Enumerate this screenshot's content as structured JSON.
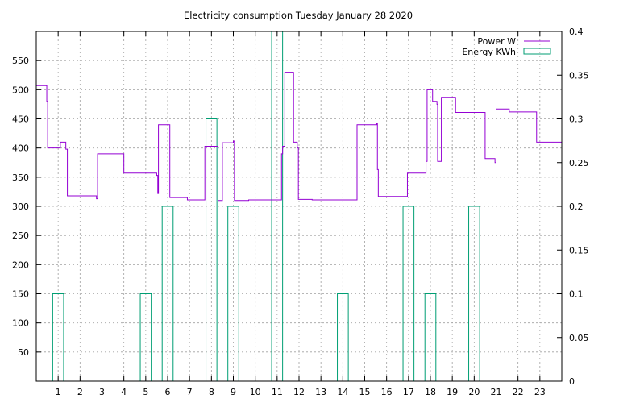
{
  "chart_data": {
    "type": "line",
    "title": "Electricity consumption Tuesday January 28 2020",
    "x_axis": {
      "range": [
        0,
        24
      ],
      "ticks": [
        1,
        2,
        3,
        4,
        5,
        6,
        7,
        8,
        9,
        10,
        11,
        12,
        13,
        14,
        15,
        16,
        17,
        18,
        19,
        20,
        21,
        22,
        23
      ],
      "tick_labels": [
        "1",
        "2",
        "3",
        "4",
        "5",
        "6",
        "7",
        "8",
        "9",
        "10",
        "11",
        "12",
        "13",
        "14",
        "15",
        "16",
        "17",
        "18",
        "19",
        "20",
        "21",
        "22",
        "23"
      ]
    },
    "y_left": {
      "range": [
        0,
        600
      ],
      "ticks": [
        50,
        100,
        150,
        200,
        250,
        300,
        350,
        400,
        450,
        500,
        550
      ],
      "tick_labels": [
        "50",
        "100",
        "150",
        "200",
        "250",
        "300",
        "350",
        "400",
        "450",
        "500",
        "550"
      ]
    },
    "y_right": {
      "range": [
        0,
        0.4
      ],
      "ticks": [
        0,
        0.05,
        0.1,
        0.15,
        0.2,
        0.25,
        0.3,
        0.35,
        0.4
      ],
      "tick_labels": [
        "0",
        "0.05",
        "0.1",
        "0.15",
        "0.2",
        "0.25",
        "0.3",
        "0.35",
        "0.4"
      ]
    },
    "grid": true,
    "legend_position": "top-right",
    "series": [
      {
        "name": "Power W",
        "type": "step-line",
        "axis": "left",
        "color": "#9400d3",
        "points": [
          [
            0,
            507
          ],
          [
            0.48,
            507
          ],
          [
            0.48,
            480
          ],
          [
            0.52,
            480
          ],
          [
            0.52,
            400
          ],
          [
            1.1,
            400
          ],
          [
            1.1,
            410
          ],
          [
            1.35,
            410
          ],
          [
            1.35,
            398
          ],
          [
            1.42,
            398
          ],
          [
            1.42,
            318
          ],
          [
            2.75,
            318
          ],
          [
            2.75,
            313
          ],
          [
            2.8,
            313
          ],
          [
            2.8,
            390
          ],
          [
            4.0,
            390
          ],
          [
            4.0,
            357
          ],
          [
            5.5,
            357
          ],
          [
            5.5,
            353
          ],
          [
            5.55,
            353
          ],
          [
            5.55,
            322
          ],
          [
            5.58,
            322
          ],
          [
            5.58,
            440
          ],
          [
            6.1,
            440
          ],
          [
            6.1,
            315
          ],
          [
            6.9,
            315
          ],
          [
            6.9,
            311
          ],
          [
            7.7,
            311
          ],
          [
            7.7,
            403
          ],
          [
            8.3,
            403
          ],
          [
            8.3,
            310
          ],
          [
            8.5,
            310
          ],
          [
            8.5,
            409
          ],
          [
            9.0,
            409
          ],
          [
            9.0,
            412
          ],
          [
            9.05,
            412
          ],
          [
            9.05,
            310
          ],
          [
            9.7,
            310
          ],
          [
            9.7,
            311
          ],
          [
            11.2,
            311
          ],
          [
            11.2,
            390
          ],
          [
            11.25,
            390
          ],
          [
            11.25,
            403
          ],
          [
            11.35,
            403
          ],
          [
            11.35,
            530
          ],
          [
            11.75,
            530
          ],
          [
            11.75,
            410
          ],
          [
            11.92,
            410
          ],
          [
            11.92,
            400
          ],
          [
            11.97,
            400
          ],
          [
            11.97,
            312
          ],
          [
            12.6,
            312
          ],
          [
            12.6,
            311
          ],
          [
            14.65,
            311
          ],
          [
            14.65,
            440
          ],
          [
            15.55,
            440
          ],
          [
            15.55,
            443
          ],
          [
            15.58,
            443
          ],
          [
            15.58,
            363
          ],
          [
            15.62,
            363
          ],
          [
            15.62,
            317
          ],
          [
            16.95,
            317
          ],
          [
            16.95,
            357
          ],
          [
            17.8,
            357
          ],
          [
            17.8,
            377
          ],
          [
            17.85,
            377
          ],
          [
            17.85,
            500
          ],
          [
            18.1,
            500
          ],
          [
            18.1,
            480
          ],
          [
            18.3,
            480
          ],
          [
            18.3,
            475
          ],
          [
            18.33,
            475
          ],
          [
            18.33,
            377
          ],
          [
            18.5,
            377
          ],
          [
            18.5,
            487
          ],
          [
            19.15,
            487
          ],
          [
            19.15,
            461
          ],
          [
            20.5,
            461
          ],
          [
            20.5,
            382
          ],
          [
            20.95,
            382
          ],
          [
            20.95,
            375
          ],
          [
            21.0,
            375
          ],
          [
            21.0,
            467
          ],
          [
            21.6,
            467
          ],
          [
            21.6,
            462
          ],
          [
            22.85,
            462
          ],
          [
            22.85,
            410
          ],
          [
            24,
            410
          ]
        ]
      },
      {
        "name": "Energy KWh",
        "type": "histogram",
        "axis": "right",
        "color": "#009e73",
        "bars": [
          {
            "x": 1,
            "value": 0.1
          },
          {
            "x": 5,
            "value": 0.1
          },
          {
            "x": 6,
            "value": 0.2
          },
          {
            "x": 8,
            "value": 0.3
          },
          {
            "x": 9,
            "value": 0.2
          },
          {
            "x": 11,
            "value": 0.4
          },
          {
            "x": 14,
            "value": 0.1
          },
          {
            "x": 17,
            "value": 0.2
          },
          {
            "x": 18,
            "value": 0.1
          },
          {
            "x": 20,
            "value": 0.2
          }
        ]
      }
    ]
  }
}
